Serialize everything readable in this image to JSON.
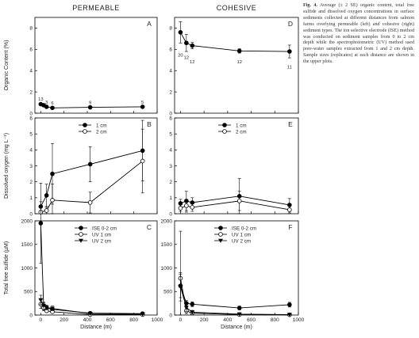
{
  "column_titles": [
    "PERMEABLE",
    "COHESIVE"
  ],
  "caption": {
    "label": "Fig. 4.",
    "text": "Average (± 2 SE) organic content, total free sulfide and dissolved oxygen concentrations in surface sediments collected at different distances from salmon farms overlying permeable (left) and cohesive (right) sediment types. The ion selective electrode (ISE) method was conducted on sediment samples from 0 to 2 cm depth while the spectrophotometric (UV) method used pore-water samples extracted from 1 and 2 cm depth. Sample sizes (replicates) at each distance are shown in the upper plots."
  },
  "colors": {
    "axis": "#000000",
    "line": "#000000",
    "text": "#222222"
  },
  "chart_data": [
    {
      "type": "line",
      "panel": "A",
      "column": "PERMEABLE",
      "xlabel": "",
      "ylabel": "Organic Content (%)",
      "ylim": [
        0,
        9
      ],
      "yticks": [
        0,
        2,
        4,
        6,
        8
      ],
      "xlim": [
        -50,
        1000
      ],
      "series": [
        {
          "marker": "filled-circle",
          "x": [
            0,
            25,
            50,
            100,
            425,
            875
          ],
          "y": [
            0.85,
            0.75,
            0.6,
            0.5,
            0.55,
            0.6
          ]
        }
      ],
      "annotations": [
        {
          "text": "13",
          "x": 0,
          "y": 1.2
        },
        {
          "text": "3",
          "x": 50,
          "y": 0.9
        },
        {
          "text": "6",
          "x": 100,
          "y": 0.8
        },
        {
          "text": "9",
          "x": 425,
          "y": 0.85
        },
        {
          "text": "5",
          "x": 875,
          "y": 0.9
        }
      ]
    },
    {
      "type": "line",
      "panel": "D",
      "column": "COHESIVE",
      "xlabel": "",
      "ylabel": "",
      "ylim": [
        0,
        9
      ],
      "yticks": [
        0,
        2,
        4,
        6,
        8
      ],
      "xlim": [
        -50,
        1000
      ],
      "series": [
        {
          "marker": "filled-circle",
          "x": [
            0,
            50,
            100,
            500,
            925
          ],
          "y": [
            7.6,
            6.6,
            6.35,
            5.85,
            5.8
          ],
          "err": [
            1.0,
            0.8,
            0.3,
            0.2,
            0.6
          ]
        }
      ],
      "annotations": [
        {
          "text": "20",
          "x": 0,
          "y": 5.3
        },
        {
          "text": "12",
          "x": 50,
          "y": 5.1
        },
        {
          "text": "12",
          "x": 100,
          "y": 4.7
        },
        {
          "text": "12",
          "x": 500,
          "y": 4.7
        },
        {
          "text": "11",
          "x": 925,
          "y": 4.2
        }
      ]
    },
    {
      "type": "line",
      "panel": "B",
      "column": "PERMEABLE",
      "xlabel": "",
      "ylabel": "Dissolved oxygen (mg L⁻¹)",
      "ylim": [
        0,
        6
      ],
      "yticks": [
        0,
        1,
        2,
        3,
        4,
        5,
        6
      ],
      "xlim": [
        -50,
        1000
      ],
      "legend": "top-center",
      "series": [
        {
          "name": "1 cm",
          "marker": "filled-circle",
          "x": [
            0,
            50,
            100,
            425,
            875
          ],
          "y": [
            0.45,
            1.15,
            2.5,
            3.1,
            3.95
          ],
          "err": [
            0.3,
            0.7,
            1.9,
            1.1,
            1.9
          ]
        },
        {
          "name": "2 cm",
          "marker": "open-circle",
          "x": [
            0,
            50,
            100,
            425,
            875
          ],
          "y": [
            0.1,
            0.2,
            0.85,
            0.7,
            3.3
          ],
          "err": [
            0.1,
            0.2,
            1.0,
            0.65,
            2.0
          ]
        }
      ]
    },
    {
      "type": "line",
      "panel": "E",
      "column": "COHESIVE",
      "xlabel": "",
      "ylabel": "",
      "ylim": [
        0,
        6
      ],
      "yticks": [
        0,
        1,
        2,
        3,
        4,
        5,
        6
      ],
      "xlim": [
        -50,
        1000
      ],
      "legend": "top-center",
      "series": [
        {
          "name": "1 cm",
          "marker": "filled-circle",
          "x": [
            0,
            50,
            100,
            500,
            925
          ],
          "y": [
            0.65,
            0.8,
            0.7,
            1.1,
            0.55
          ],
          "err": [
            0.25,
            0.6,
            0.3,
            1.1,
            0.4
          ]
        },
        {
          "name": "2 cm",
          "marker": "open-circle",
          "x": [
            0,
            50,
            100,
            500,
            925
          ],
          "y": [
            0.35,
            0.5,
            0.4,
            0.8,
            0.25
          ],
          "err": [
            0.2,
            0.4,
            0.25,
            0.6,
            0.2
          ]
        }
      ]
    },
    {
      "type": "line",
      "panel": "C",
      "column": "PERMEABLE",
      "xlabel": "Distance (m)",
      "ylabel": "Total free sulfide (µM)",
      "ylim": [
        0,
        2000
      ],
      "yticks": [
        0,
        500,
        1000,
        1500,
        2000
      ],
      "xlim": [
        -50,
        1000
      ],
      "xticks": [
        0,
        200,
        400,
        600,
        800,
        1000
      ],
      "legend": "top-center",
      "series": [
        {
          "name": "ISE 0-2 cm",
          "marker": "filled-circle",
          "x": [
            0,
            25,
            50,
            100,
            425,
            875
          ],
          "y": [
            1950,
            200,
            150,
            120,
            40,
            30
          ],
          "err": [
            850,
            60,
            40,
            50,
            20,
            20
          ]
        },
        {
          "name": "UV 1 cm",
          "marker": "open-circle",
          "x": [
            0,
            25,
            50,
            100,
            425,
            875
          ],
          "y": [
            230,
            150,
            90,
            70,
            10,
            10
          ],
          "err": [
            90,
            60,
            30,
            30,
            10,
            10
          ]
        },
        {
          "name": "UV 2 cm",
          "marker": "filled-triangle-down",
          "x": [
            0,
            25,
            50,
            100,
            425,
            875
          ],
          "y": [
            320,
            200,
            160,
            140,
            30,
            20
          ],
          "err": [
            100,
            70,
            50,
            50,
            20,
            15
          ]
        }
      ]
    },
    {
      "type": "line",
      "panel": "F",
      "column": "COHESIVE",
      "xlabel": "Distance (m)",
      "ylabel": "",
      "ylim": [
        0,
        2000
      ],
      "yticks": [
        0,
        500,
        1000,
        1500,
        2000
      ],
      "xlim": [
        -50,
        1000
      ],
      "xticks": [
        0,
        200,
        400,
        600,
        800,
        1000
      ],
      "legend": "top-center",
      "series": [
        {
          "name": "ISE 0-2 cm",
          "marker": "filled-circle",
          "x": [
            0,
            50,
            100,
            500,
            925
          ],
          "y": [
            620,
            250,
            230,
            150,
            220
          ],
          "err": [
            250,
            60,
            50,
            40,
            50
          ]
        },
        {
          "name": "UV 1 cm",
          "marker": "open-circle",
          "x": [
            0,
            50,
            100,
            500,
            925
          ],
          "y": [
            780,
            90,
            40,
            10,
            5
          ],
          "err": [
            1000,
            60,
            30,
            10,
            5
          ]
        },
        {
          "name": "UV 2 cm",
          "marker": "filled-triangle-down",
          "x": [
            0,
            50,
            100,
            500,
            925
          ],
          "y": [
            600,
            160,
            60,
            20,
            10
          ],
          "err": [
            300,
            80,
            40,
            15,
            10
          ]
        }
      ]
    }
  ]
}
